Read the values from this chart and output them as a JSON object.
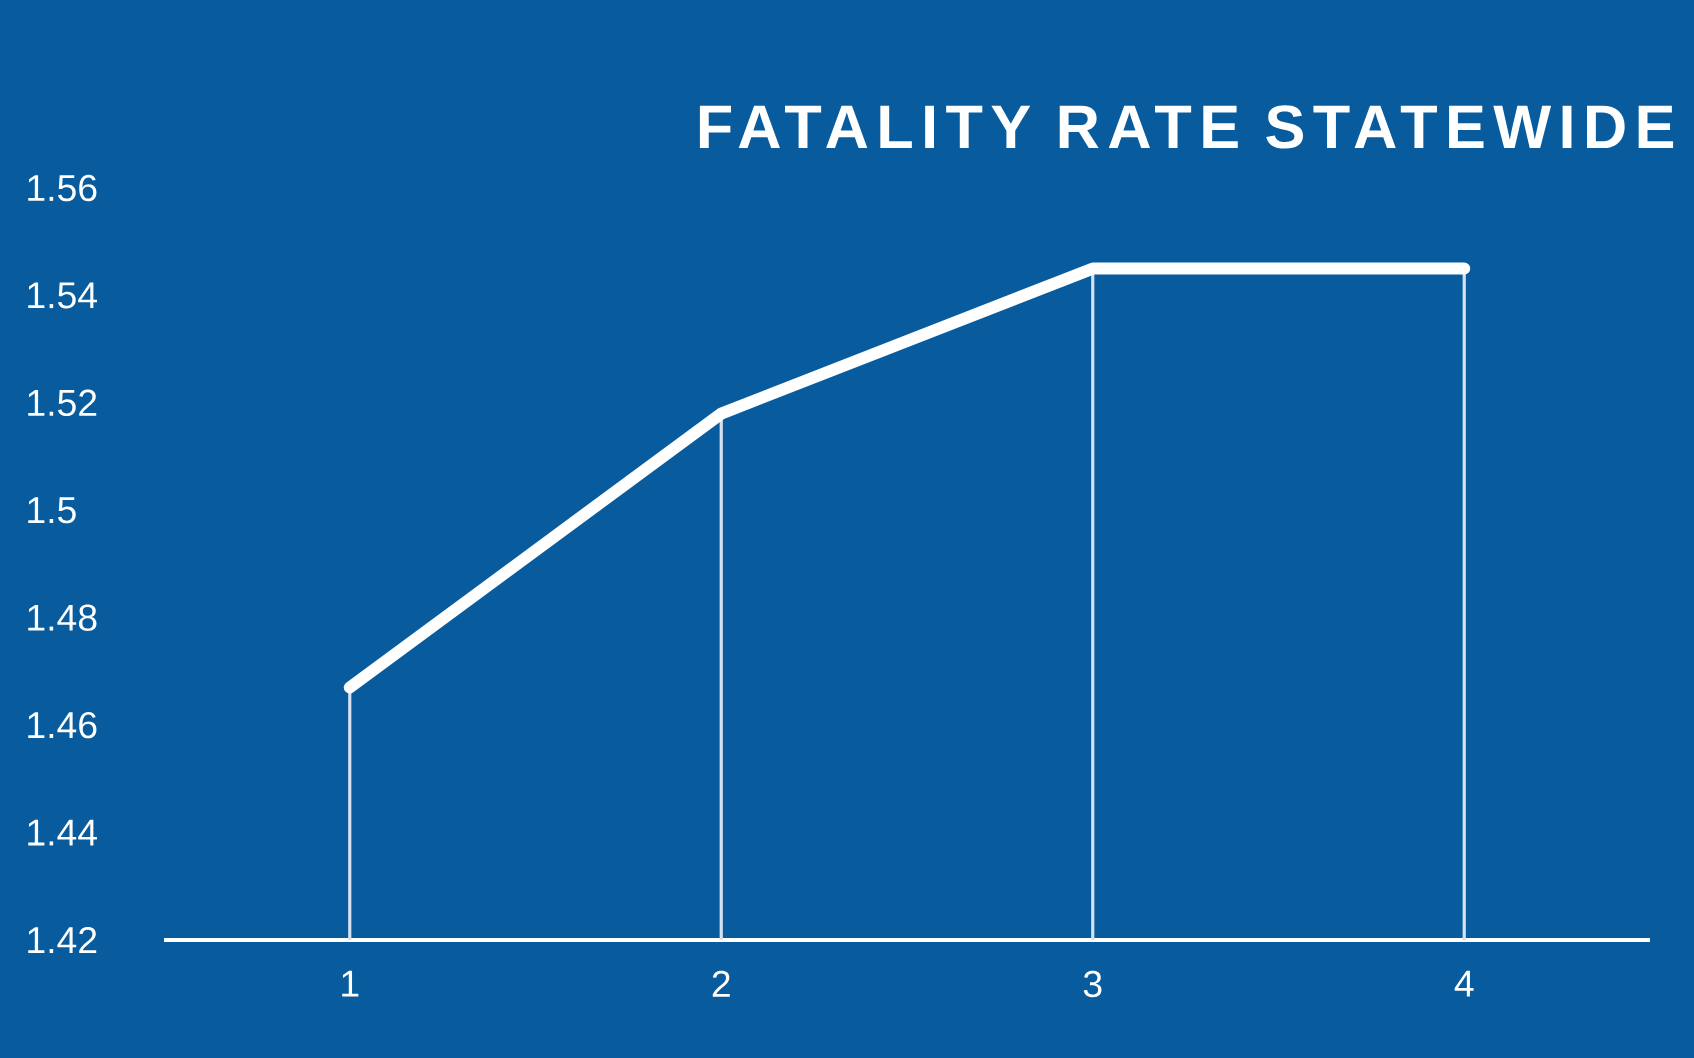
{
  "chart_data": {
    "type": "line",
    "title": "FATALITY RATE STATEWIDE",
    "categories": [
      "1",
      "2",
      "3",
      "4"
    ],
    "series": [
      {
        "type": "bar",
        "color": "#d6e2ef",
        "values": [
          1.467,
          1.518,
          1.545,
          1.545
        ]
      },
      {
        "color": "#ffffff",
        "values": [
          1.467,
          1.518,
          1.545,
          1.545
        ]
      }
    ],
    "ylim": [
      1.42,
      1.56
    ],
    "yticks": [
      1.42,
      1.44,
      1.46,
      1.48,
      1.5,
      1.52,
      1.54,
      1.56
    ],
    "line_style": "solid"
  }
}
